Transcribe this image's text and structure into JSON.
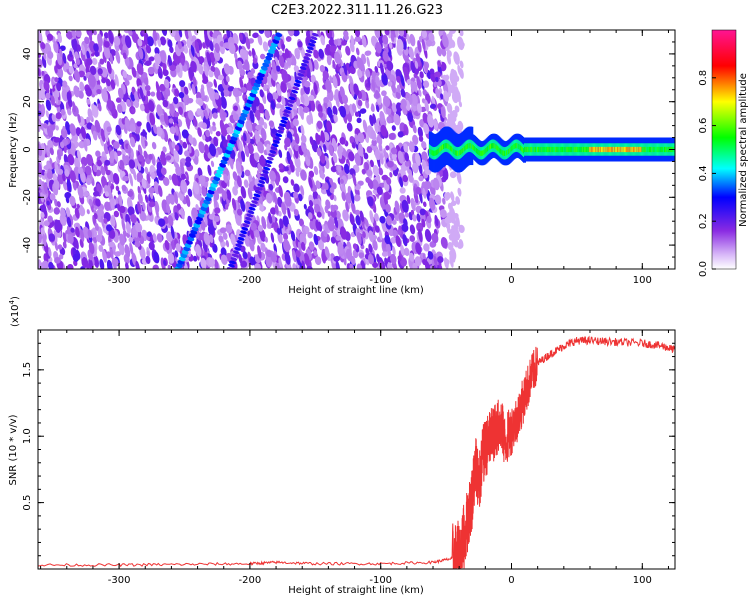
{
  "figure": {
    "title": "C2E3.2022.311.11.26.G23"
  },
  "chart_data": [
    {
      "type": "heatmap",
      "xlabel": "Height of straight line (km)",
      "ylabel": "Frequency (Hz)",
      "xlim": [
        -362,
        125
      ],
      "ylim": [
        -50,
        50
      ],
      "x_ticks": [
        -300,
        -200,
        -100,
        0,
        100
      ],
      "y_ticks": [
        -40,
        -20,
        0,
        20,
        40
      ],
      "grid": false,
      "colorbar": {
        "label": "Normalized spectral amplitude",
        "range": [
          0,
          1
        ],
        "ticks": [
          0.0,
          0.2,
          0.4,
          0.6,
          0.8
        ],
        "colors": [
          "#ffffff",
          "#d8b8f8",
          "#8a2be2",
          "#0000ff",
          "#00ffff",
          "#00ff00",
          "#ffff00",
          "#ff0000",
          "#ff1493"
        ]
      },
      "features": {
        "noise_region_x": [
          -362,
          -50
        ],
        "noise_amplitude": 0.2,
        "streak_1": {
          "x": [
            -255,
            -178
          ],
          "y": [
            -50,
            48
          ],
          "amplitude": 0.35
        },
        "streak_2": {
          "x": [
            -215,
            -150
          ],
          "y": [
            -50,
            48
          ],
          "amplitude": 0.25
        },
        "signal_band": {
          "x": [
            -62,
            125
          ],
          "y_center": 0,
          "amplitude": 0.55,
          "peak_x": [
            60,
            100
          ],
          "peak_amplitude": 0.8
        }
      }
    },
    {
      "type": "line",
      "xlabel": "Height of straight line (km)",
      "ylabel": "SNR (10 * v/v)",
      "y_multiplier": "(x10",
      "y_multiplier_exp": "4",
      "y_multiplier_close": ")",
      "xlim": [
        -362,
        125
      ],
      "ylim": [
        0,
        1.8
      ],
      "x_ticks": [
        -300,
        -200,
        -100,
        0,
        100
      ],
      "y_ticks": [
        0.5,
        1.0,
        1.5
      ],
      "y_tick_labels": [
        "0.5",
        "1.0",
        "1.5"
      ],
      "grid": false,
      "series": [
        {
          "color": "#ee3333",
          "x": [
            -362,
            -300,
            -250,
            -200,
            -180,
            -150,
            -100,
            -60,
            -45,
            -40,
            -35,
            -30,
            -27,
            -25,
            -22,
            -18,
            -15,
            -12,
            -8,
            -5,
            0,
            5,
            10,
            15,
            20,
            30,
            40,
            50,
            60,
            80,
            100,
            115,
            125
          ],
          "y": [
            0.03,
            0.03,
            0.035,
            0.04,
            0.05,
            0.04,
            0.04,
            0.05,
            0.08,
            0.1,
            0.3,
            0.55,
            0.8,
            0.6,
            0.85,
            0.95,
            1.0,
            1.05,
            1.1,
            0.95,
            1.05,
            1.15,
            1.3,
            1.45,
            1.55,
            1.62,
            1.68,
            1.72,
            1.72,
            1.71,
            1.7,
            1.68,
            1.65
          ]
        }
      ]
    }
  ]
}
